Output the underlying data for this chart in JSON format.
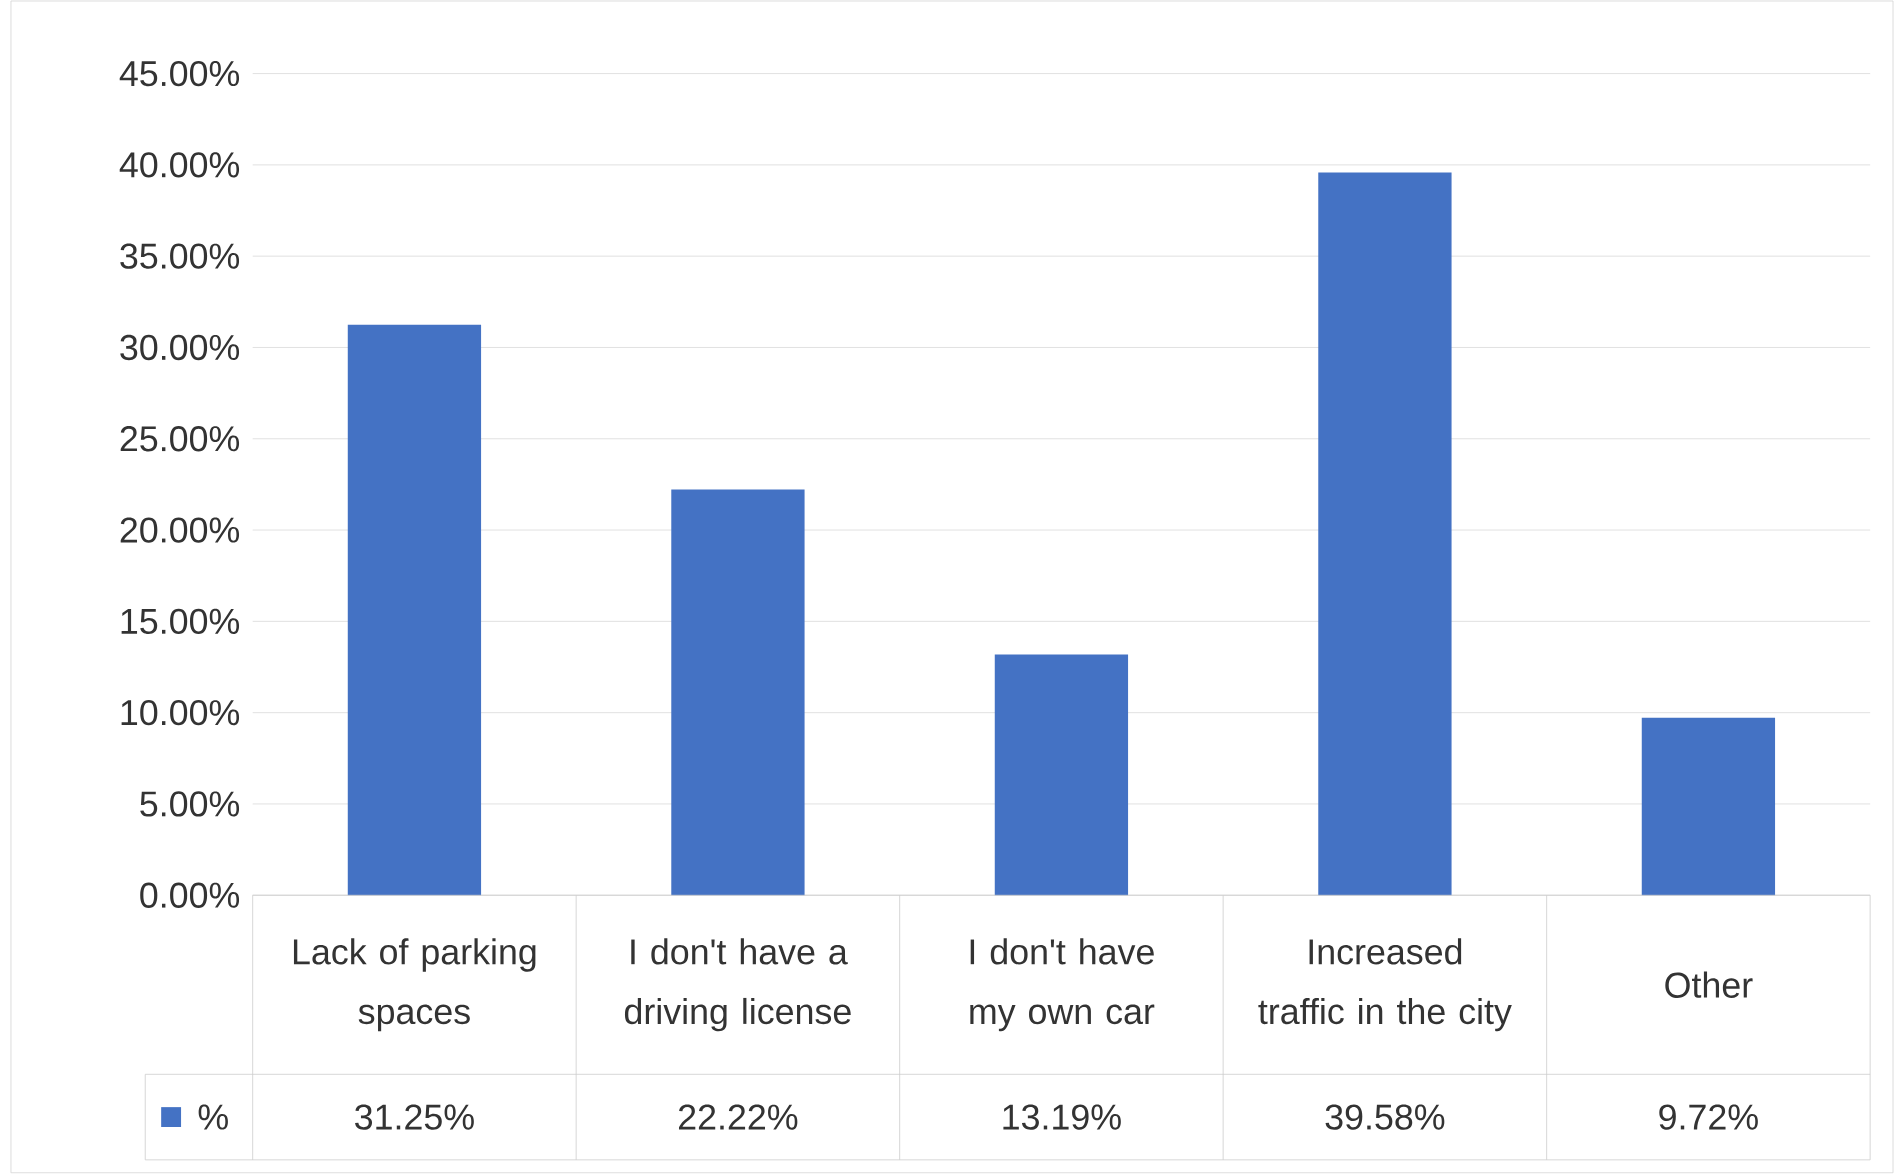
{
  "chart_data": {
    "type": "bar",
    "categories": [
      "Lack of parking spaces",
      "I don't have a driving license",
      "I don't have my own car",
      "Increased traffic in the city",
      "Other"
    ],
    "series": [
      {
        "name": "%",
        "color": "#4472c4",
        "values": [
          31.25,
          22.22,
          13.19,
          39.58,
          9.72
        ],
        "value_labels": [
          "31.25%",
          "22.22%",
          "13.19%",
          "39.58%",
          "9.72%"
        ]
      }
    ],
    "ylim": [
      0,
      45
    ],
    "yticks": [
      {
        "value": 0,
        "label": "0.00%"
      },
      {
        "value": 5,
        "label": "5.00%"
      },
      {
        "value": 10,
        "label": "10.00%"
      },
      {
        "value": 15,
        "label": "15.00%"
      },
      {
        "value": 20,
        "label": "20.00%"
      },
      {
        "value": 25,
        "label": "25.00%"
      },
      {
        "value": 30,
        "label": "30.00%"
      },
      {
        "value": 35,
        "label": "35.00%"
      },
      {
        "value": 40,
        "label": "40.00%"
      },
      {
        "value": 45,
        "label": "45.00%"
      }
    ],
    "grid": "y",
    "legend": "bottom"
  }
}
